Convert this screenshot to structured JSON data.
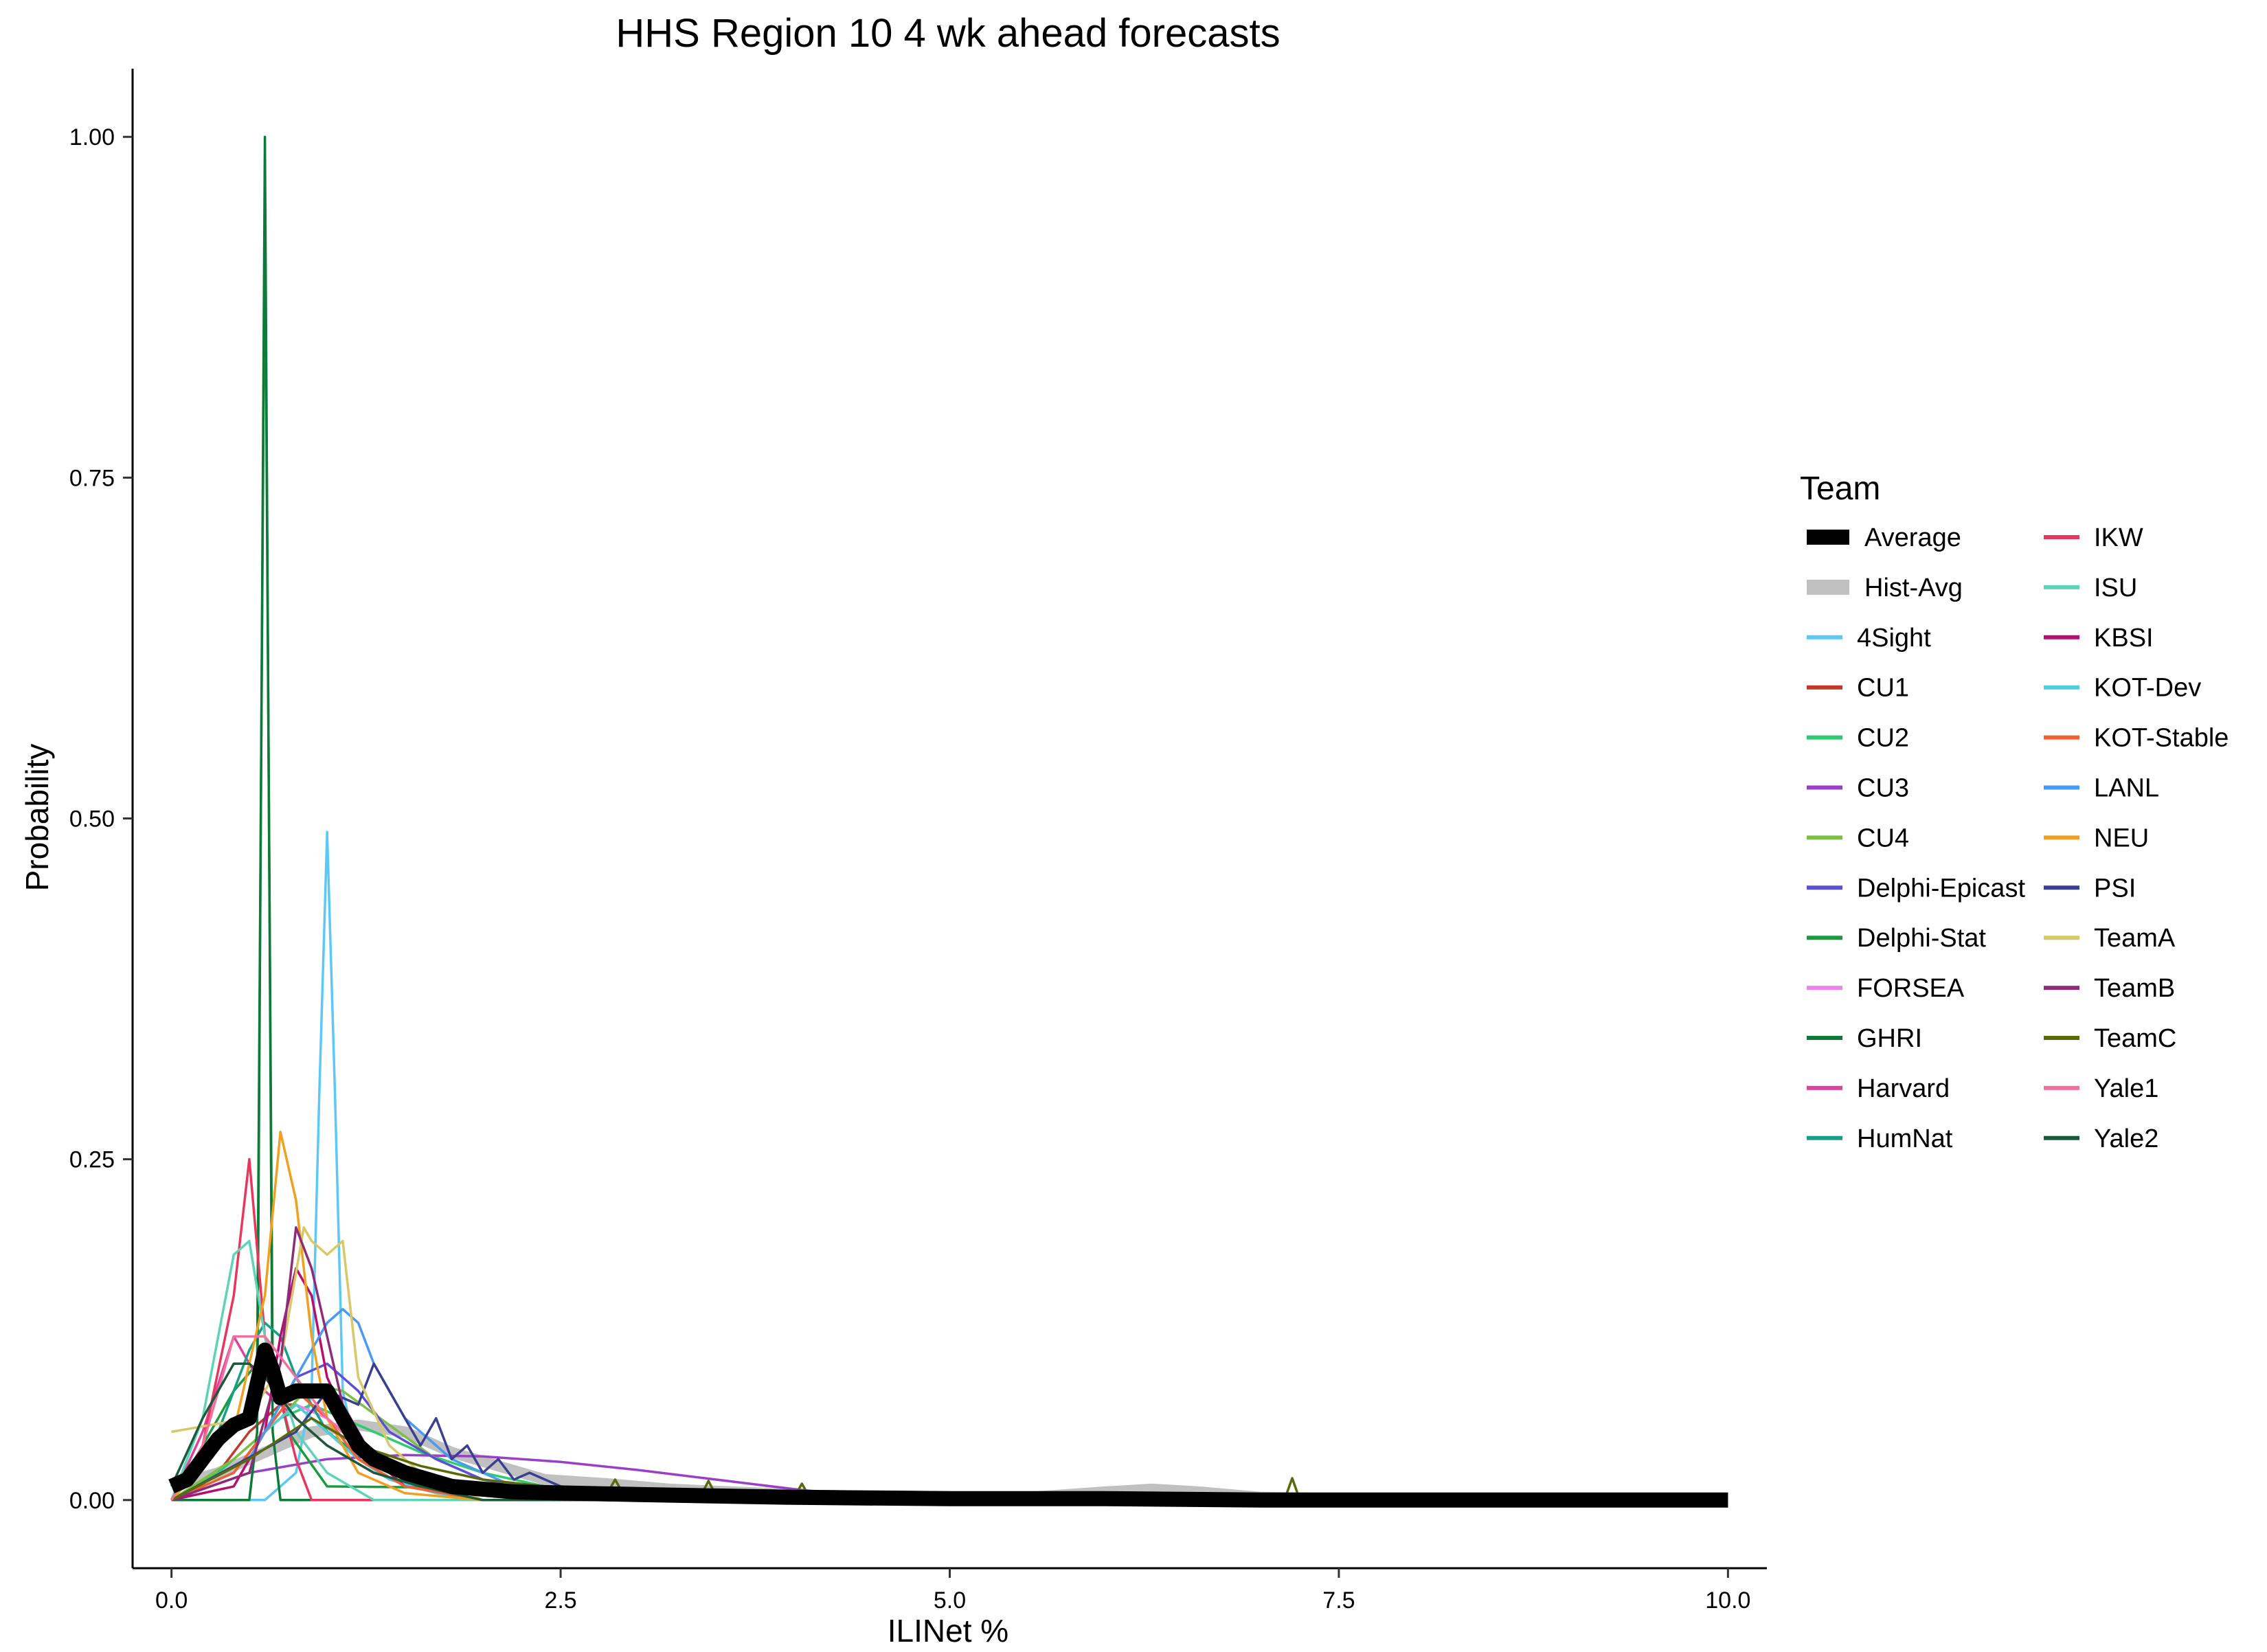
{
  "chart_data": {
    "type": "line",
    "title": "HHS Region 10 4 wk ahead forecasts",
    "xlabel": "ILINet %",
    "ylabel": "Probability",
    "xlim": [
      -0.25,
      10.25
    ],
    "ylim": [
      -0.05,
      1.05
    ],
    "x_ticks": [
      "0.0",
      "2.5",
      "5.0",
      "7.5",
      "10.0"
    ],
    "y_ticks": [
      "0.00",
      "0.25",
      "0.50",
      "0.75",
      "1.00"
    ],
    "grid": false,
    "legend": {
      "title": "Team",
      "placement": "right",
      "columns": 2
    },
    "series": [
      {
        "name": "Average",
        "color": "#000000",
        "width": "thick",
        "x": [
          0,
          0.1,
          0.2,
          0.3,
          0.4,
          0.5,
          0.55,
          0.6,
          0.65,
          0.7,
          0.8,
          0.9,
          1.0,
          1.1,
          1.2,
          1.3,
          1.5,
          1.8,
          2.2,
          3.0,
          4.0,
          5.0,
          6.0,
          7.0,
          8.0,
          9.0,
          10.0
        ],
        "y": [
          0.01,
          0.015,
          0.03,
          0.045,
          0.055,
          0.06,
          0.085,
          0.11,
          0.095,
          0.075,
          0.08,
          0.08,
          0.08,
          0.06,
          0.04,
          0.03,
          0.02,
          0.01,
          0.006,
          0.004,
          0.002,
          0.001,
          0.001,
          0,
          0,
          0,
          0
        ]
      },
      {
        "name": "Hist-Avg",
        "color": "#c0c0c0",
        "width": "medium",
        "x": [
          0,
          0.3,
          0.6,
          0.9,
          1.2,
          1.5,
          1.8,
          2.1,
          2.4,
          2.8,
          3.2,
          3.6,
          4.0,
          4.5,
          5.0,
          5.5,
          6.0,
          6.3,
          6.6,
          7.0,
          7.5,
          8.0,
          9.0,
          10.0
        ],
        "y": [
          0.01,
          0.02,
          0.035,
          0.05,
          0.055,
          0.05,
          0.035,
          0.025,
          0.015,
          0.012,
          0.008,
          0.006,
          0.004,
          0.002,
          0.001,
          0.002,
          0.006,
          0.008,
          0.006,
          0.002,
          0.001,
          0,
          0,
          0
        ]
      },
      {
        "name": "4Sight",
        "color": "#5bc8f5",
        "width": "thin",
        "x": [
          0,
          0.6,
          0.8,
          0.9,
          0.95,
          1.0,
          1.05,
          1.1,
          1.2,
          1.4,
          1.7,
          2.0,
          2.5,
          10.0
        ],
        "y": [
          0,
          0,
          0.02,
          0.08,
          0.3,
          0.49,
          0.3,
          0.08,
          0.03,
          0.015,
          0.005,
          0,
          0,
          0
        ]
      },
      {
        "name": "CU1",
        "color": "#c0392b",
        "width": "thin",
        "x": [
          0,
          0.3,
          0.5,
          0.6,
          0.7,
          0.8,
          0.9,
          1.0,
          1.2,
          1.5,
          2.0,
          2.5,
          3.0,
          10.0
        ],
        "y": [
          0,
          0.02,
          0.05,
          0.06,
          0.07,
          0.07,
          0.06,
          0.05,
          0.03,
          0.015,
          0.008,
          0.004,
          0,
          0
        ]
      },
      {
        "name": "CU2",
        "color": "#2ecc71",
        "width": "thin",
        "x": [
          0,
          0.3,
          0.5,
          0.7,
          0.9,
          1.1,
          1.3,
          1.6,
          2.0,
          2.4,
          2.8,
          3.2,
          10.0
        ],
        "y": [
          0,
          0.02,
          0.04,
          0.06,
          0.07,
          0.06,
          0.05,
          0.035,
          0.02,
          0.01,
          0.004,
          0,
          0
        ]
      },
      {
        "name": "CU3",
        "color": "#9b3fc8",
        "width": "thin",
        "x": [
          0,
          0.5,
          1.0,
          1.5,
          2.0,
          2.5,
          3.0,
          3.5,
          4.0,
          4.5,
          10.0
        ],
        "y": [
          0,
          0.02,
          0.03,
          0.033,
          0.032,
          0.028,
          0.022,
          0.015,
          0.008,
          0.002,
          0
        ]
      },
      {
        "name": "CU4",
        "color": "#7bc043",
        "width": "thin",
        "x": [
          0,
          0.4,
          0.7,
          0.9,
          1.1,
          1.4,
          1.7,
          2.0,
          2.5,
          3.0,
          10.0
        ],
        "y": [
          0,
          0.03,
          0.06,
          0.085,
          0.08,
          0.055,
          0.03,
          0.015,
          0.006,
          0,
          0
        ]
      },
      {
        "name": "Delphi-Epicast",
        "color": "#5b4fd6",
        "width": "thin",
        "x": [
          0,
          0.4,
          0.6,
          0.8,
          1.0,
          1.2,
          1.4,
          1.7,
          2.0,
          2.5,
          3.0,
          10.0
        ],
        "y": [
          0,
          0.02,
          0.05,
          0.09,
          0.1,
          0.08,
          0.05,
          0.03,
          0.015,
          0.005,
          0,
          0
        ]
      },
      {
        "name": "Delphi-Stat",
        "color": "#1a9c3e",
        "width": "thin",
        "x": [
          0,
          0.2,
          0.4,
          0.55,
          0.6,
          0.65,
          0.75,
          1.0,
          10.0
        ],
        "y": [
          0,
          0.04,
          0.08,
          0.1,
          0.95,
          0.1,
          0.05,
          0.01,
          0
        ]
      },
      {
        "name": "FORSEA",
        "color": "#ee82ee",
        "width": "thin",
        "x": [
          0,
          0.4,
          0.6,
          0.8,
          1.0,
          1.2,
          1.5,
          2.0,
          10.0
        ],
        "y": [
          0,
          0.02,
          0.05,
          0.07,
          0.06,
          0.04,
          0.02,
          0.005,
          0
        ]
      },
      {
        "name": "GHRI",
        "color": "#0e7a3a",
        "width": "thin",
        "x": [
          0,
          0.5,
          0.55,
          0.6,
          0.65,
          0.7,
          0.75,
          10.0
        ],
        "y": [
          0,
          0,
          0.05,
          1.0,
          0.05,
          0,
          0,
          0
        ]
      },
      {
        "name": "Harvard",
        "color": "#e040a0",
        "width": "thin",
        "x": [
          0,
          0.2,
          0.4,
          0.5,
          0.6,
          0.8,
          1.0,
          1.3,
          1.6,
          2.0,
          10.0
        ],
        "y": [
          0,
          0.05,
          0.12,
          0.1,
          0.08,
          0.06,
          0.04,
          0.02,
          0.01,
          0,
          0
        ]
      },
      {
        "name": "HumNat",
        "color": "#16a085",
        "width": "thin",
        "x": [
          0,
          0.3,
          0.5,
          0.6,
          0.7,
          0.8,
          1.0,
          1.3,
          1.6,
          2.0,
          10.0
        ],
        "y": [
          0,
          0.05,
          0.11,
          0.13,
          0.12,
          0.09,
          0.05,
          0.025,
          0.01,
          0,
          0
        ]
      },
      {
        "name": "IKW",
        "color": "#e8365d",
        "width": "thin",
        "x": [
          0,
          0.2,
          0.4,
          0.5,
          0.6,
          0.8,
          0.9,
          10.0
        ],
        "y": [
          0,
          0.04,
          0.15,
          0.25,
          0.12,
          0.03,
          0,
          0
        ]
      },
      {
        "name": "ISU",
        "color": "#5fd3b8",
        "width": "thin",
        "x": [
          0,
          0.2,
          0.4,
          0.5,
          0.6,
          0.8,
          1.0,
          1.3,
          10.0
        ],
        "y": [
          0,
          0.06,
          0.18,
          0.19,
          0.12,
          0.05,
          0.02,
          0,
          0
        ]
      },
      {
        "name": "KBSI",
        "color": "#b5106e",
        "width": "thin",
        "x": [
          0,
          0.4,
          0.6,
          0.7,
          0.8,
          0.9,
          1.0,
          1.2,
          1.5,
          2.0,
          10.0
        ],
        "y": [
          0,
          0.01,
          0.05,
          0.12,
          0.17,
          0.15,
          0.09,
          0.04,
          0.01,
          0,
          0
        ]
      },
      {
        "name": "KOT-Dev",
        "color": "#4fd0d8",
        "width": "thin",
        "x": [
          0,
          0.4,
          0.6,
          0.8,
          1.0,
          1.2,
          1.5,
          2.0,
          10.0
        ],
        "y": [
          0,
          0.02,
          0.05,
          0.07,
          0.05,
          0.03,
          0.01,
          0,
          0
        ]
      },
      {
        "name": "KOT-Stable",
        "color": "#f06030",
        "width": "thin",
        "x": [
          0,
          0.4,
          0.6,
          0.8,
          1.0,
          1.2,
          1.5,
          2.0,
          10.0
        ],
        "y": [
          0,
          0.02,
          0.05,
          0.08,
          0.06,
          0.03,
          0.01,
          0,
          0
        ]
      },
      {
        "name": "LANL",
        "color": "#4a9af0",
        "width": "thin",
        "x": [
          0,
          0.5,
          0.8,
          1.0,
          1.1,
          1.2,
          1.3,
          1.5,
          1.8,
          2.2,
          2.6,
          10.0
        ],
        "y": [
          0,
          0.03,
          0.09,
          0.13,
          0.14,
          0.13,
          0.1,
          0.06,
          0.03,
          0.01,
          0,
          0
        ]
      },
      {
        "name": "NEU",
        "color": "#f0a020",
        "width": "thin",
        "x": [
          0,
          0.4,
          0.6,
          0.7,
          0.8,
          0.9,
          1.0,
          1.2,
          1.5,
          2.0,
          10.0
        ],
        "y": [
          0,
          0.05,
          0.15,
          0.27,
          0.22,
          0.12,
          0.06,
          0.02,
          0.005,
          0,
          0
        ]
      },
      {
        "name": "PSI",
        "color": "#3b3f8f",
        "width": "thin",
        "x": [
          0,
          0.8,
          1.0,
          1.2,
          1.3,
          1.4,
          1.5,
          1.6,
          1.7,
          1.8,
          1.9,
          2.0,
          2.1,
          2.2,
          2.3,
          2.5,
          3.0,
          10.0
        ],
        "y": [
          0,
          0.05,
          0.08,
          0.07,
          0.1,
          0.08,
          0.06,
          0.04,
          0.06,
          0.03,
          0.04,
          0.02,
          0.03,
          0.015,
          0.02,
          0.01,
          0,
          0
        ]
      },
      {
        "name": "TeamA",
        "color": "#d9c86a",
        "width": "thin",
        "x": [
          0,
          0.5,
          0.7,
          0.85,
          0.9,
          1.0,
          1.1,
          1.2,
          1.4,
          1.6,
          2.0,
          10.0
        ],
        "y": [
          0.05,
          0.06,
          0.1,
          0.2,
          0.19,
          0.18,
          0.19,
          0.09,
          0.04,
          0.02,
          0,
          0
        ]
      },
      {
        "name": "TeamB",
        "color": "#8e2c7a",
        "width": "thin",
        "x": [
          0,
          0.5,
          0.7,
          0.8,
          0.9,
          1.0,
          1.1,
          1.3,
          1.6,
          2.0,
          10.0
        ],
        "y": [
          0,
          0.02,
          0.1,
          0.2,
          0.17,
          0.12,
          0.07,
          0.03,
          0.01,
          0,
          0
        ]
      },
      {
        "name": "TeamC",
        "color": "#5a6a0a",
        "width": "thin",
        "x": [
          0,
          0.5,
          0.9,
          1.2,
          1.6,
          2.0,
          2.4,
          2.8,
          2.85,
          2.9,
          3.4,
          3.45,
          3.5,
          4.0,
          4.05,
          4.1,
          4.6,
          5.0,
          6.0,
          7.0,
          7.15,
          7.2,
          7.25,
          7.5,
          8.0,
          9.0,
          10.0
        ],
        "y": [
          0,
          0.03,
          0.06,
          0.04,
          0.025,
          0.015,
          0.01,
          0.005,
          0.015,
          0.005,
          0.003,
          0.014,
          0.003,
          0.002,
          0.012,
          0.002,
          0.001,
          0.001,
          0.001,
          0,
          0,
          0.016,
          0,
          0,
          0,
          0,
          0
        ]
      },
      {
        "name": "Yale1",
        "color": "#f070a0",
        "width": "thin",
        "x": [
          0,
          0.2,
          0.4,
          0.6,
          0.8,
          1.0,
          1.3,
          1.6,
          2.0,
          10.0
        ],
        "y": [
          0,
          0.04,
          0.12,
          0.12,
          0.09,
          0.06,
          0.03,
          0.01,
          0,
          0
        ]
      },
      {
        "name": "Yale2",
        "color": "#1a5a3a",
        "width": "thin",
        "x": [
          0,
          0.2,
          0.4,
          0.5,
          0.6,
          0.8,
          1.0,
          1.3,
          1.6,
          2.0,
          10.0
        ],
        "y": [
          0.01,
          0.06,
          0.1,
          0.1,
          0.09,
          0.06,
          0.04,
          0.02,
          0.01,
          0,
          0
        ]
      }
    ]
  }
}
